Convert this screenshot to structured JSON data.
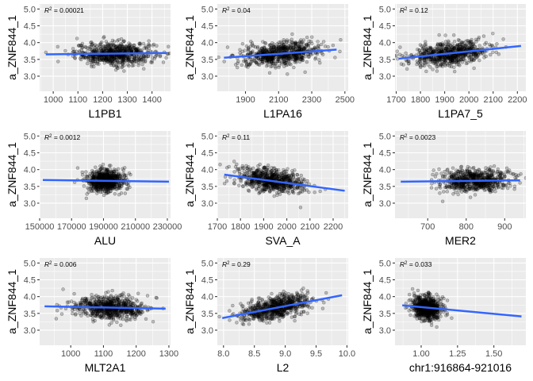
{
  "chart_data": [
    {
      "type": "scatter",
      "xlabel": "L1PB1",
      "ylabel": "a_ZNF844_1",
      "r2_prefix": "R",
      "r2_value": " = 0.00021",
      "xlim": [
        945,
        1475
      ],
      "ylim": [
        2.55,
        5.15
      ],
      "xticks": [
        1000,
        1100,
        1200,
        1300,
        1400
      ],
      "yticks": [
        3.0,
        3.5,
        4.0,
        4.5,
        5.0
      ],
      "ytick_labels": [
        "3.0",
        "3.5",
        "4.0",
        "4.5",
        "5.0"
      ],
      "x_center": 1250,
      "x_spread": 80,
      "y_center": 3.67,
      "y_spread": 0.17,
      "n": 700,
      "fit": {
        "x": [
          970,
          1460
        ],
        "y": [
          3.65,
          3.69
        ]
      }
    },
    {
      "type": "scatter",
      "xlabel": "L1PA16",
      "ylabel": "a_ZNF844_1",
      "r2_prefix": "R",
      "r2_value": " = 0.04",
      "xlim": [
        1730,
        2520
      ],
      "ylim": [
        2.55,
        5.15
      ],
      "xticks": [
        1900,
        2100,
        2300,
        2500
      ],
      "yticks": [
        3.0,
        3.5,
        4.0,
        4.5,
        5.0
      ],
      "ytick_labels": [
        "3.0",
        "3.5",
        "4.0",
        "4.5",
        "5.0"
      ],
      "x_center": 2110,
      "x_spread": 120,
      "y_center": 3.67,
      "y_spread": 0.17,
      "n": 700,
      "fit": {
        "x": [
          1770,
          2450
        ],
        "y": [
          3.55,
          3.79
        ]
      }
    },
    {
      "type": "scatter",
      "xlabel": "L1PA7_5",
      "ylabel": "a_ZNF844_1",
      "r2_prefix": "R",
      "r2_value": " = 0.12",
      "xlim": [
        1695,
        2235
      ],
      "ylim": [
        2.55,
        5.15
      ],
      "xticks": [
        1700,
        1800,
        1900,
        2000,
        2100,
        2200
      ],
      "yticks": [
        3.0,
        3.5,
        4.0,
        4.5,
        5.0
      ],
      "ytick_labels": [
        "3.0",
        "3.5",
        "4.0",
        "4.5",
        "5.0"
      ],
      "x_center": 1920,
      "x_spread": 80,
      "y_center": 3.67,
      "y_spread": 0.17,
      "n": 700,
      "fit": {
        "x": [
          1710,
          2215
        ],
        "y": [
          3.52,
          3.9
        ]
      }
    },
    {
      "type": "scatter",
      "xlabel": "ALU",
      "ylabel": "a_ZNF844_1",
      "r2_prefix": "R",
      "r2_value": " = 0.0012",
      "xlim": [
        150000,
        232000
      ],
      "ylim": [
        2.55,
        5.15
      ],
      "xticks": [
        150000,
        170000,
        190000,
        210000,
        230000
      ],
      "yticks": [
        3.0,
        3.5,
        4.0,
        4.5,
        5.0
      ],
      "ytick_labels": [
        "3.0",
        "3.5",
        "4.0",
        "4.5",
        "5.0"
      ],
      "x_center": 191000,
      "x_spread": 6000,
      "y_center": 3.67,
      "y_spread": 0.17,
      "n": 700,
      "fit": {
        "x": [
          152000,
          231000
        ],
        "y": [
          3.69,
          3.64
        ]
      }
    },
    {
      "type": "scatter",
      "xlabel": "SVA_A",
      "ylabel": "a_ZNF844_1",
      "r2_prefix": "R",
      "r2_value": " = 0.11",
      "xlim": [
        1700,
        2265
      ],
      "ylim": [
        2.55,
        5.15
      ],
      "xticks": [
        1700,
        1800,
        1900,
        2000,
        2100,
        2200
      ],
      "yticks": [
        3.0,
        3.5,
        4.0,
        4.5,
        5.0
      ],
      "ytick_labels": [
        "3.0",
        "3.5",
        "4.0",
        "4.5",
        "5.0"
      ],
      "x_center": 1930,
      "x_spread": 70,
      "y_center": 3.7,
      "y_spread": 0.17,
      "n": 700,
      "fit": {
        "x": [
          1730,
          2250
        ],
        "y": [
          3.85,
          3.37
        ]
      }
    },
    {
      "type": "scatter",
      "xlabel": "MER2",
      "ylabel": "a_ZNF844_1",
      "r2_prefix": "R",
      "r2_value": " = 0.0023",
      "xlim": [
        615,
        955
      ],
      "ylim": [
        2.55,
        5.15
      ],
      "xticks": [
        700,
        800,
        900
      ],
      "yticks": [
        3.0,
        3.5,
        4.0,
        4.5,
        5.0
      ],
      "ytick_labels": [
        "3.0",
        "3.5",
        "4.0",
        "4.5",
        "5.0"
      ],
      "x_center": 820,
      "x_spread": 45,
      "y_center": 3.67,
      "y_spread": 0.17,
      "n": 700,
      "fit": {
        "x": [
          630,
          940
        ],
        "y": [
          3.64,
          3.68
        ]
      }
    },
    {
      "type": "scatter",
      "xlabel": "MLT2A1",
      "ylabel": "a_ZNF844_1",
      "r2_prefix": "R",
      "r2_value": " = 0.006",
      "xlim": [
        905,
        1305
      ],
      "ylim": [
        2.55,
        5.15
      ],
      "xticks": [
        1000,
        1100,
        1200,
        1300
      ],
      "yticks": [
        3.0,
        3.5,
        4.0,
        4.5,
        5.0
      ],
      "ytick_labels": [
        "3.0",
        "3.5",
        "4.0",
        "4.5",
        "5.0"
      ],
      "x_center": 1120,
      "x_spread": 55,
      "y_center": 3.67,
      "y_spread": 0.17,
      "n": 700,
      "fit": {
        "x": [
          920,
          1290
        ],
        "y": [
          3.71,
          3.64
        ]
      }
    },
    {
      "type": "scatter",
      "xlabel": "L2",
      "ylabel": "a_ZNF844_1",
      "r2_prefix": "R",
      "r2_value": " = 0.29",
      "xlim": [
        7.9,
        10.02
      ],
      "ylim": [
        2.55,
        5.15
      ],
      "xticks": [
        8.0,
        8.5,
        9.0,
        9.5,
        10.0
      ],
      "xtick_labels": [
        "8.0",
        "8.5",
        "9.0",
        "9.5",
        "10.0"
      ],
      "yticks": [
        3.0,
        3.5,
        4.0,
        4.5,
        5.0
      ],
      "ytick_labels": [
        "3.0",
        "3.5",
        "4.0",
        "4.5",
        "5.0"
      ],
      "x_center": 8.85,
      "x_spread": 0.28,
      "y_center": 3.67,
      "y_spread": 0.17,
      "n": 700,
      "fit": {
        "x": [
          7.98,
          9.92
        ],
        "y": [
          3.36,
          4.04
        ]
      }
    },
    {
      "type": "scatter",
      "xlabel": "chr1:916864-921016",
      "ylabel": "a_ZNF844_1",
      "r2_prefix": "R",
      "r2_value": " = 0.033",
      "xlim": [
        0.82,
        1.72
      ],
      "ylim": [
        2.55,
        5.15
      ],
      "xticks": [
        1.0,
        1.25,
        1.5
      ],
      "xtick_labels": [
        "1.00",
        "1.25",
        "1.50"
      ],
      "yticks": [
        3.0,
        3.5,
        4.0,
        4.5,
        5.0
      ],
      "ytick_labels": [
        "3.0",
        "3.5",
        "4.0",
        "4.5",
        "5.0"
      ],
      "x_center": 1.04,
      "x_spread": 0.05,
      "y_center": 3.67,
      "y_spread": 0.17,
      "n": 700,
      "fit": {
        "x": [
          0.87,
          1.69
        ],
        "y": [
          3.74,
          3.41
        ]
      }
    }
  ]
}
